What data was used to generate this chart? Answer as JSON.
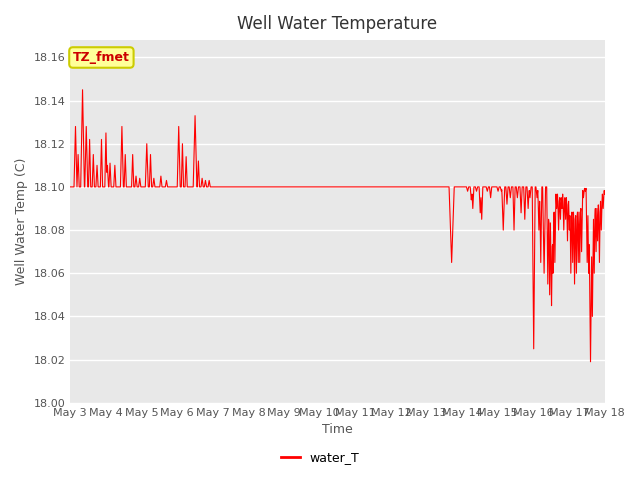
{
  "title": "Well Water Temperature",
  "xlabel": "Time",
  "ylabel": "Well Water Temp (C)",
  "ylim": [
    18.0,
    18.168
  ],
  "yticks": [
    18.0,
    18.02,
    18.04,
    18.06,
    18.08,
    18.1,
    18.12,
    18.14,
    18.16
  ],
  "line_color": "#FF0000",
  "line_width": 0.8,
  "bg_color": "#E8E8E8",
  "legend_label": "water_T",
  "annotation_text": "TZ_fmet",
  "annotation_color": "#CC0000",
  "annotation_bg": "#FFFF99",
  "annotation_border": "#CCCC00",
  "title_fontsize": 12,
  "axis_label_fontsize": 9,
  "tick_fontsize": 8
}
